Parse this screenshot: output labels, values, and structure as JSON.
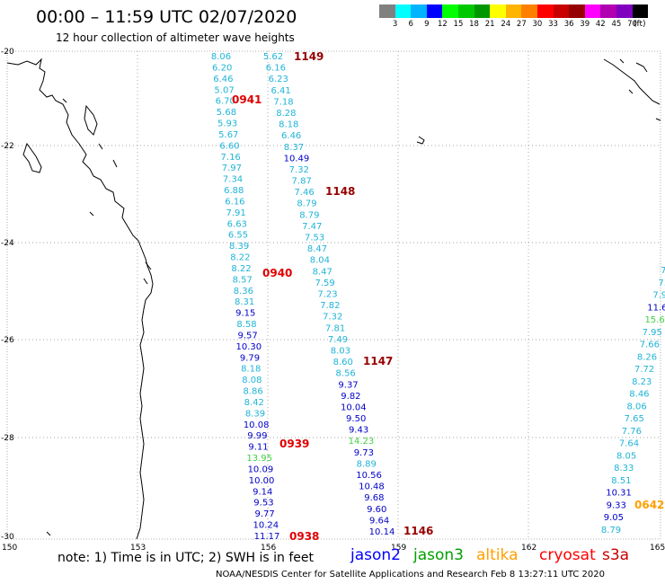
{
  "header": {
    "title": "00:00 – 11:59 UTC 02/07/2020",
    "subtitle": "12 hour collection of altimeter wave heights"
  },
  "legend": {
    "boxes": [
      "#808080",
      "#00ffff",
      "#00b4ff",
      "#0000ff",
      "#00ff00",
      "#00c800",
      "#009600",
      "#ffff00",
      "#ffb400",
      "#ff8000",
      "#ff0000",
      "#c80000",
      "#960000",
      "#ff00ff",
      "#b000b0",
      "#8000c0",
      "#000000"
    ],
    "labels": [
      "3",
      "6",
      "9",
      "12",
      "15",
      "18",
      "21",
      "24",
      "27",
      "30",
      "33",
      "36",
      "39",
      "42",
      "45",
      "70"
    ],
    "unit": "(ft)"
  },
  "axes": {
    "lon_labels": [
      "150",
      "153",
      "156",
      "159",
      "162",
      "165"
    ],
    "lat_labels": [
      "-20",
      "-22",
      "-24",
      "-26",
      "-28",
      "-30"
    ]
  },
  "colors": {
    "cyan": "#20b4d6",
    "blue": "#0000c8",
    "green": "#40d040",
    "red": "#e00000",
    "darkred": "#960000",
    "orange": "#ffa000"
  },
  "tracks": [
    {
      "color": "cyan",
      "values": [
        "8.06",
        "6.20",
        "6.46",
        "5.07",
        "6.70",
        "5.68",
        "5.93",
        "5.67",
        "6.60",
        "7.16",
        "7.97",
        "7.34",
        "6.88",
        "6.16",
        "7.91",
        "6.63",
        "6.55",
        "8.39",
        "8.22",
        "8.22",
        "8.57",
        "8.36",
        "8.31"
      ]
    },
    {
      "color": "blue",
      "values": [
        "9.15"
      ]
    },
    {
      "color": "cyan",
      "values": [
        "8.58"
      ]
    },
    {
      "color": "blue",
      "values": [
        "9.57",
        "10.30",
        "9.79"
      ]
    },
    {
      "color": "cyan",
      "values": [
        "8.18",
        "8.08",
        "8.86",
        "8.42",
        "8.39"
      ]
    },
    {
      "color": "blue",
      "values": [
        "10.08",
        "9.99",
        "9.11"
      ]
    },
    {
      "color": "green",
      "values": [
        "13.95"
      ]
    },
    {
      "color": "blue",
      "values": [
        "10.09",
        "10.00",
        "9.14",
        "9.53",
        "9.77",
        "10.24",
        "11.17"
      ]
    }
  ],
  "track2": [
    {
      "color": "cyan",
      "values": [
        "5.62",
        "6.16",
        "6.23",
        "6.41",
        "7.18",
        "8.28",
        "8.18",
        "6.46",
        "8.37"
      ]
    },
    {
      "color": "blue",
      "values": [
        "10.49"
      ]
    },
    {
      "color": "cyan",
      "values": [
        "7.32",
        "7.87",
        "7.46",
        "8.79",
        "8.79",
        "7.47",
        "7.53",
        "8.47",
        "8.04",
        "8.47",
        "7.59",
        "7.23",
        "7.82",
        "7.32",
        "7.81",
        "7.49",
        "8.03",
        "8.60",
        "8.56"
      ]
    },
    {
      "color": "blue",
      "values": [
        "9.37",
        "9.82",
        "10.04",
        "9.50",
        "9.43"
      ]
    },
    {
      "color": "green",
      "values": [
        "14.23"
      ]
    },
    {
      "color": "blue",
      "values": [
        "9.73"
      ]
    },
    {
      "color": "cyan",
      "values": [
        "8.89"
      ]
    },
    {
      "color": "blue",
      "values": [
        "10.56",
        "10.48",
        "9.68",
        "9.60",
        "9.64",
        "10.14"
      ]
    }
  ],
  "track3": [
    {
      "color": "cyan",
      "values": [
        "7.",
        "7.",
        "7.9"
      ]
    },
    {
      "color": "blue",
      "values": [
        "11.6"
      ]
    },
    {
      "color": "green",
      "values": [
        "15.6"
      ]
    },
    {
      "color": "cyan",
      "values": [
        "7.95",
        "7.66",
        "8.26",
        "7.72",
        "8.23",
        "8.46",
        "8.06",
        "7.65",
        "7.76",
        "7.64",
        "8.05",
        "8.33",
        "8.51"
      ]
    },
    {
      "color": "blue",
      "values": [
        "10.31",
        "9.33",
        "9.05"
      ]
    },
    {
      "color": "cyan",
      "values": [
        "8.79"
      ]
    }
  ],
  "times": [
    {
      "text": "1149",
      "color": "darkred"
    },
    {
      "text": "0941",
      "color": "red"
    },
    {
      "text": "1148",
      "color": "darkred"
    },
    {
      "text": "0940",
      "color": "red"
    },
    {
      "text": "1147",
      "color": "darkred"
    },
    {
      "text": "0939",
      "color": "red"
    },
    {
      "text": "0938",
      "color": "red"
    },
    {
      "text": "1146",
      "color": "darkred"
    },
    {
      "text": "0642",
      "color": "orange"
    }
  ],
  "notes": {
    "note_text": "note: 1) Time is in UTC; 2) SWH is in feet",
    "sat_jason2": "jason2",
    "sat_jason3": "jason3",
    "sat_altika": "altika",
    "sat_cryosat": "cryosat",
    "sat_s3a": "s3a",
    "footer": "NOAA/NESDIS Center for Satellite Applications and Research   Feb  8 13:27:11 UTC 2020"
  }
}
